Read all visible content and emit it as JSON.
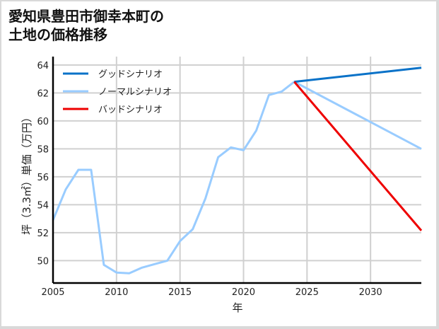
{
  "title_line1": "愛知県豊田市御幸本町の",
  "title_line2": "土地の価格推移",
  "chart_data": {
    "type": "line",
    "title": "愛知県豊田市御幸本町の土地の価格推移",
    "xlabel": "年",
    "ylabel": "坪（3.3㎡）単価（万円）",
    "xlim": [
      2005,
      2034
    ],
    "ylim": [
      48.4,
      64.6
    ],
    "xticks": [
      2005,
      2010,
      2015,
      2020,
      2025,
      2030
    ],
    "yticks": [
      50,
      52,
      54,
      56,
      58,
      60,
      62,
      64
    ],
    "grid": true,
    "legend_position": "upper left",
    "series": [
      {
        "name": "グッドシナリオ",
        "color": "#0a72c8",
        "x": [
          2024,
          2034
        ],
        "values": [
          62.8,
          63.8
        ]
      },
      {
        "name": "ノーマルシナリオ",
        "color": "#99ccff",
        "x": [
          2005,
          2006,
          2007,
          2008,
          2009,
          2010,
          2011,
          2012,
          2013,
          2014,
          2015,
          2016,
          2017,
          2018,
          2019,
          2020,
          2021,
          2022,
          2023,
          2024,
          2034
        ],
        "values": [
          52.9,
          55.1,
          56.5,
          56.5,
          49.7,
          49.15,
          49.1,
          49.5,
          49.75,
          50.0,
          51.4,
          52.25,
          54.45,
          57.4,
          58.1,
          57.9,
          59.3,
          61.85,
          62.1,
          62.8,
          58.0
        ]
      },
      {
        "name": "バッドシナリオ",
        "color": "#ee0000",
        "x": [
          2024,
          2034
        ],
        "values": [
          62.8,
          52.15
        ]
      }
    ]
  }
}
